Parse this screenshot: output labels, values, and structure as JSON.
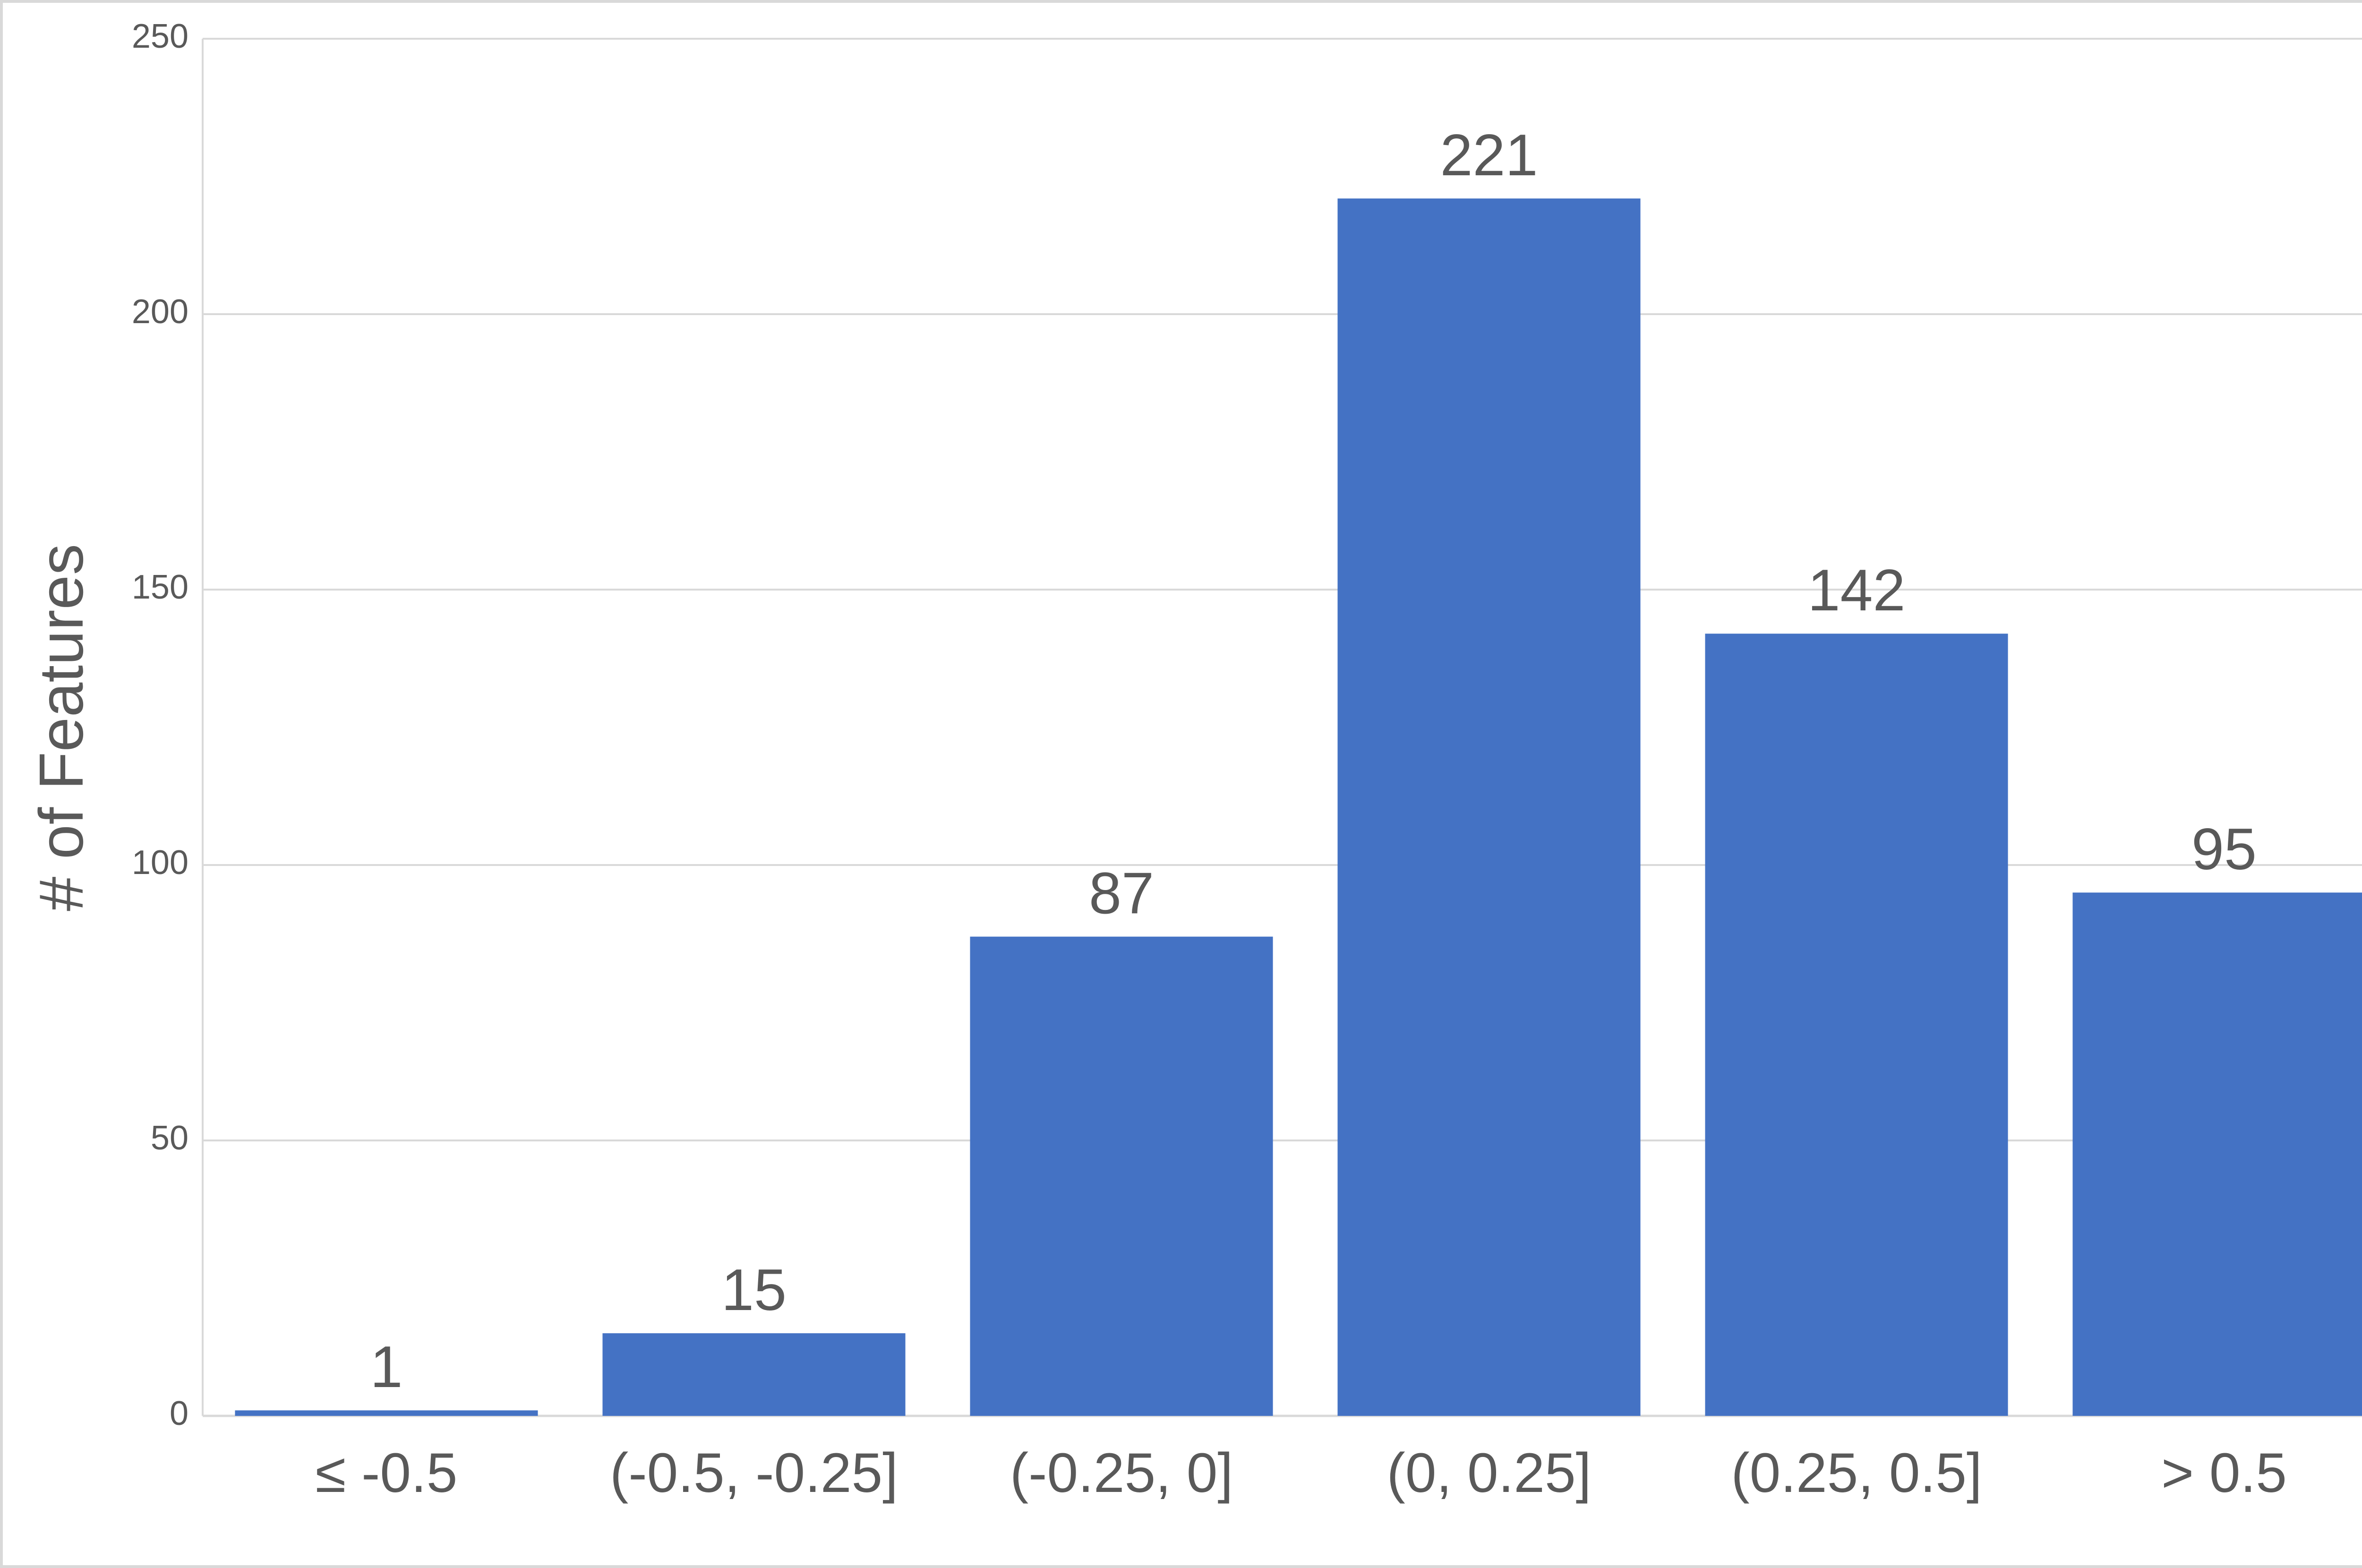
{
  "chart_data": {
    "type": "bar",
    "y_label": "# of Features",
    "categories": [
      "≤ -0.5",
      "(-0.5, -0.25]",
      "(-0.25, 0]",
      "(0, 0.25]",
      "(0.25, 0.5]",
      "> 0.5"
    ],
    "values": [
      1,
      15,
      87,
      221,
      142,
      95
    ],
    "color": "#4472c4",
    "ylim": [
      0,
      250
    ],
    "yticks": [
      0,
      50,
      100,
      150,
      200,
      250
    ],
    "grid": true,
    "value_labels_shown": true
  }
}
